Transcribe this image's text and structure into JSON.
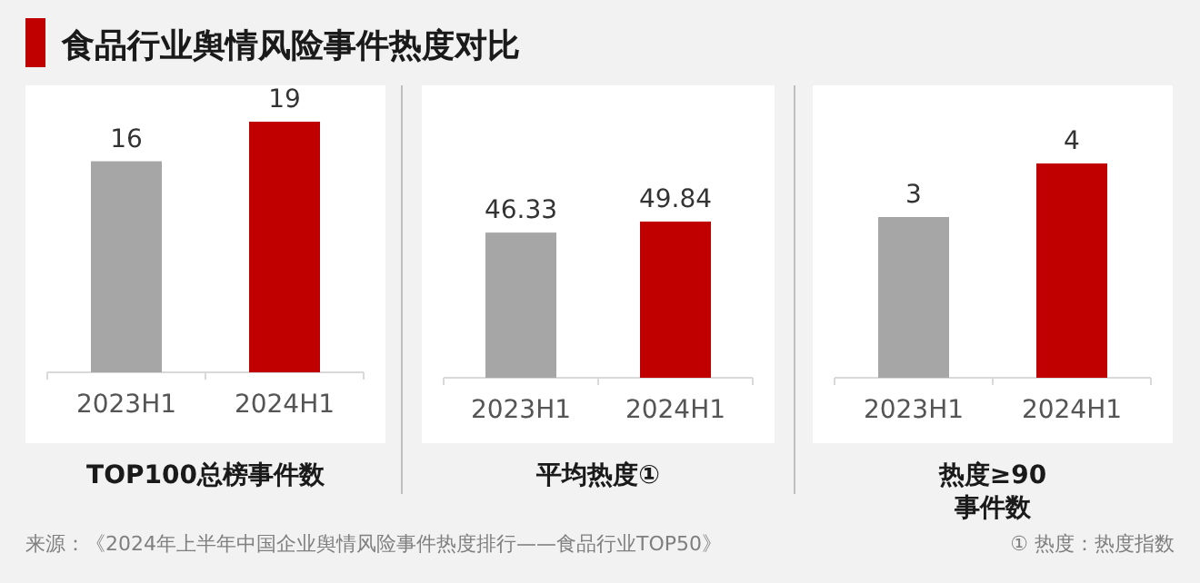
{
  "chart_data": [
    {
      "type": "other",
      "title": "食品行业舆情风险事件热度对比",
      "annotations": [
        "来源：《2024年上半年中国企业舆情风险事件热度排行——食品行业TOP50》",
        "① 热度：热度指数"
      ]
    },
    {
      "type": "bar",
      "xlabel": "TOP100总榜事件数",
      "categories": [
        "2023H1",
        "2024H1"
      ],
      "values": [
        16,
        19
      ],
      "colors": [
        "#a6a6a6",
        "#c00000"
      ],
      "data_labels": true
    },
    {
      "type": "bar",
      "xlabel": "平均热度①",
      "categories": [
        "2023H1",
        "2024H1"
      ],
      "values": [
        46.33,
        49.84
      ],
      "colors": [
        "#a6a6a6",
        "#c00000"
      ],
      "data_labels": true
    },
    {
      "type": "bar",
      "xlabel": "热度≥90 事件数",
      "categories": [
        "2023H1",
        "2024H1"
      ],
      "values": [
        3,
        4
      ],
      "colors": [
        "#a6a6a6",
        "#c00000"
      ],
      "data_labels": true
    }
  ]
}
